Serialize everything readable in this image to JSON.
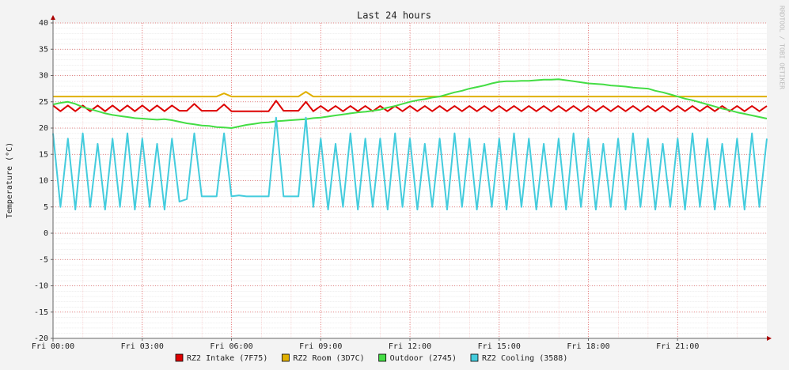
{
  "chart_data": {
    "type": "line",
    "title": "Last 24 hours",
    "y_label": "Temperature (°C)",
    "watermark": "RRDTOOL / TOBI OETIKER",
    "xlim": [
      0,
      24
    ],
    "ylim": [
      -20,
      40
    ],
    "xticks": [
      {
        "value": 0,
        "label": "Fri 00:00"
      },
      {
        "value": 3,
        "label": "Fri 03:00"
      },
      {
        "value": 6,
        "label": "Fri 06:00"
      },
      {
        "value": 9,
        "label": "Fri 09:00"
      },
      {
        "value": 12,
        "label": "Fri 12:00"
      },
      {
        "value": 15,
        "label": "Fri 15:00"
      },
      {
        "value": 18,
        "label": "Fri 18:00"
      },
      {
        "value": 21,
        "label": "Fri 21:00"
      }
    ],
    "yticks": [
      -20,
      -15,
      -10,
      -5,
      0,
      5,
      10,
      15,
      20,
      25,
      30,
      35,
      40
    ],
    "grid": true,
    "legend": "bottom",
    "x": [
      0,
      0.25,
      0.5,
      0.75,
      1,
      1.25,
      1.5,
      1.75,
      2,
      2.25,
      2.5,
      2.75,
      3,
      3.25,
      3.5,
      3.75,
      4,
      4.25,
      4.5,
      4.75,
      5,
      5.25,
      5.5,
      5.75,
      6,
      6.25,
      6.5,
      6.75,
      7,
      7.25,
      7.5,
      7.75,
      8,
      8.25,
      8.5,
      8.75,
      9,
      9.25,
      9.5,
      9.75,
      10,
      10.25,
      10.5,
      10.75,
      11,
      11.25,
      11.5,
      11.75,
      12,
      12.25,
      12.5,
      12.75,
      13,
      13.25,
      13.5,
      13.75,
      14,
      14.25,
      14.5,
      14.75,
      15,
      15.25,
      15.5,
      15.75,
      16,
      16.25,
      16.5,
      16.75,
      17,
      17.25,
      17.5,
      17.75,
      18,
      18.25,
      18.5,
      18.75,
      19,
      19.25,
      19.5,
      19.75,
      20,
      20.25,
      20.5,
      20.75,
      21,
      21.25,
      21.5,
      21.75,
      22,
      22.25,
      22.5,
      22.75,
      23,
      23.25,
      23.5,
      23.75,
      24
    ],
    "series": [
      {
        "name": "RZ2 Intake (7F75)",
        "color": "#dd0000",
        "values": [
          24.3,
          23.2,
          24.3,
          23.2,
          24.3,
          23.2,
          24.3,
          23.2,
          24.3,
          23.2,
          24.3,
          23.2,
          24.3,
          23.2,
          24.3,
          23.2,
          24.3,
          23.3,
          23.3,
          24.6,
          23.3,
          23.3,
          23.3,
          24.5,
          23.2,
          23.2,
          23.2,
          23.2,
          23.2,
          23.2,
          25.2,
          23.3,
          23.3,
          23.3,
          25,
          23.2,
          24.2,
          23.2,
          24.2,
          23.2,
          24.2,
          23.2,
          24.2,
          23.2,
          24.2,
          23.2,
          24.2,
          23.2,
          24.2,
          23.2,
          24.2,
          23.2,
          24.2,
          23.2,
          24.2,
          23.2,
          24.2,
          23.2,
          24.2,
          23.2,
          24.2,
          23.2,
          24.2,
          23.2,
          24.2,
          23.2,
          24.2,
          23.2,
          24.2,
          23.2,
          24.2,
          23.2,
          24.2,
          23.2,
          24.2,
          23.2,
          24.2,
          23.2,
          24.2,
          23.2,
          24.2,
          23.2,
          24.2,
          23.2,
          24.2,
          23.2,
          24.2,
          23.2,
          24.2,
          23.2,
          24.2,
          23.2,
          24.2,
          23.2,
          24.2,
          23.2,
          24.2
        ]
      },
      {
        "name": "RZ2 Room (3D7C)",
        "color": "#e0b000",
        "values": [
          26,
          26,
          26,
          26,
          26,
          26,
          26,
          26,
          26,
          26,
          26,
          26,
          26,
          26,
          26,
          26,
          26,
          26,
          26,
          26,
          26,
          26,
          26,
          26.6,
          26,
          26,
          26,
          26,
          26,
          26,
          26,
          26,
          26,
          26,
          26.9,
          26,
          26,
          26,
          26,
          26,
          26,
          26,
          26,
          26,
          26,
          26,
          26,
          26,
          26,
          26,
          26,
          26,
          26,
          26,
          26,
          26,
          26,
          26,
          26,
          26,
          26,
          26,
          26,
          26,
          26,
          26,
          26,
          26,
          26,
          26,
          26,
          26,
          26,
          26,
          26,
          26,
          26,
          26,
          26,
          26,
          26,
          26,
          26,
          26,
          26,
          26,
          26,
          26,
          26,
          26,
          26,
          26,
          26,
          26,
          26,
          26,
          26
        ]
      },
      {
        "name": "Outdoor (2745)",
        "color": "#44dd44",
        "values": [
          24.5,
          24.8,
          25,
          24.6,
          24,
          23.6,
          23.2,
          22.8,
          22.5,
          22.3,
          22.1,
          21.9,
          21.8,
          21.7,
          21.6,
          21.7,
          21.5,
          21.2,
          20.9,
          20.7,
          20.5,
          20.4,
          20.2,
          20.1,
          20,
          20.3,
          20.6,
          20.8,
          21,
          21.1,
          21.3,
          21.4,
          21.5,
          21.6,
          21.7,
          21.9,
          22,
          22.2,
          22.4,
          22.6,
          22.8,
          23,
          23.1,
          23.3,
          23.5,
          23.9,
          24.2,
          24.6,
          25,
          25.3,
          25.5,
          25.8,
          26,
          26.4,
          26.8,
          27.1,
          27.5,
          27.8,
          28.1,
          28.5,
          28.8,
          28.9,
          28.9,
          29,
          29,
          29.1,
          29.2,
          29.2,
          29.3,
          29.1,
          28.9,
          28.7,
          28.5,
          28.4,
          28.3,
          28.1,
          28,
          27.9,
          27.7,
          27.6,
          27.5,
          27.1,
          26.8,
          26.4,
          26,
          25.6,
          25.3,
          24.9,
          24.5,
          24.1,
          23.7,
          23.4,
          23,
          22.7,
          22.4,
          22.1,
          21.8
        ]
      },
      {
        "name": "RZ2 Cooling (3588)",
        "color": "#44ccdd",
        "values": [
          19,
          5,
          18,
          4.5,
          19,
          5,
          17,
          4.5,
          18,
          5,
          19,
          4.5,
          18,
          5,
          17,
          4.5,
          18,
          6,
          6.5,
          19,
          7,
          7,
          7,
          19,
          7,
          7.2,
          7,
          7,
          7,
          7,
          22,
          7,
          7,
          7,
          22,
          5,
          18,
          4.5,
          17,
          5,
          19,
          4.5,
          18,
          5,
          18,
          4.5,
          19,
          5,
          18,
          4.5,
          17,
          5,
          18,
          4.5,
          19,
          5,
          18,
          4.5,
          17,
          5,
          18,
          4.5,
          19,
          5,
          18,
          4.5,
          17,
          5,
          18,
          4.5,
          19,
          5,
          18,
          4.5,
          17,
          5,
          18,
          4.5,
          19,
          5,
          18,
          4.5,
          17,
          5,
          18,
          4.5,
          19,
          5,
          18,
          4.5,
          17,
          5,
          18,
          4.5,
          19,
          5,
          18
        ]
      }
    ]
  }
}
